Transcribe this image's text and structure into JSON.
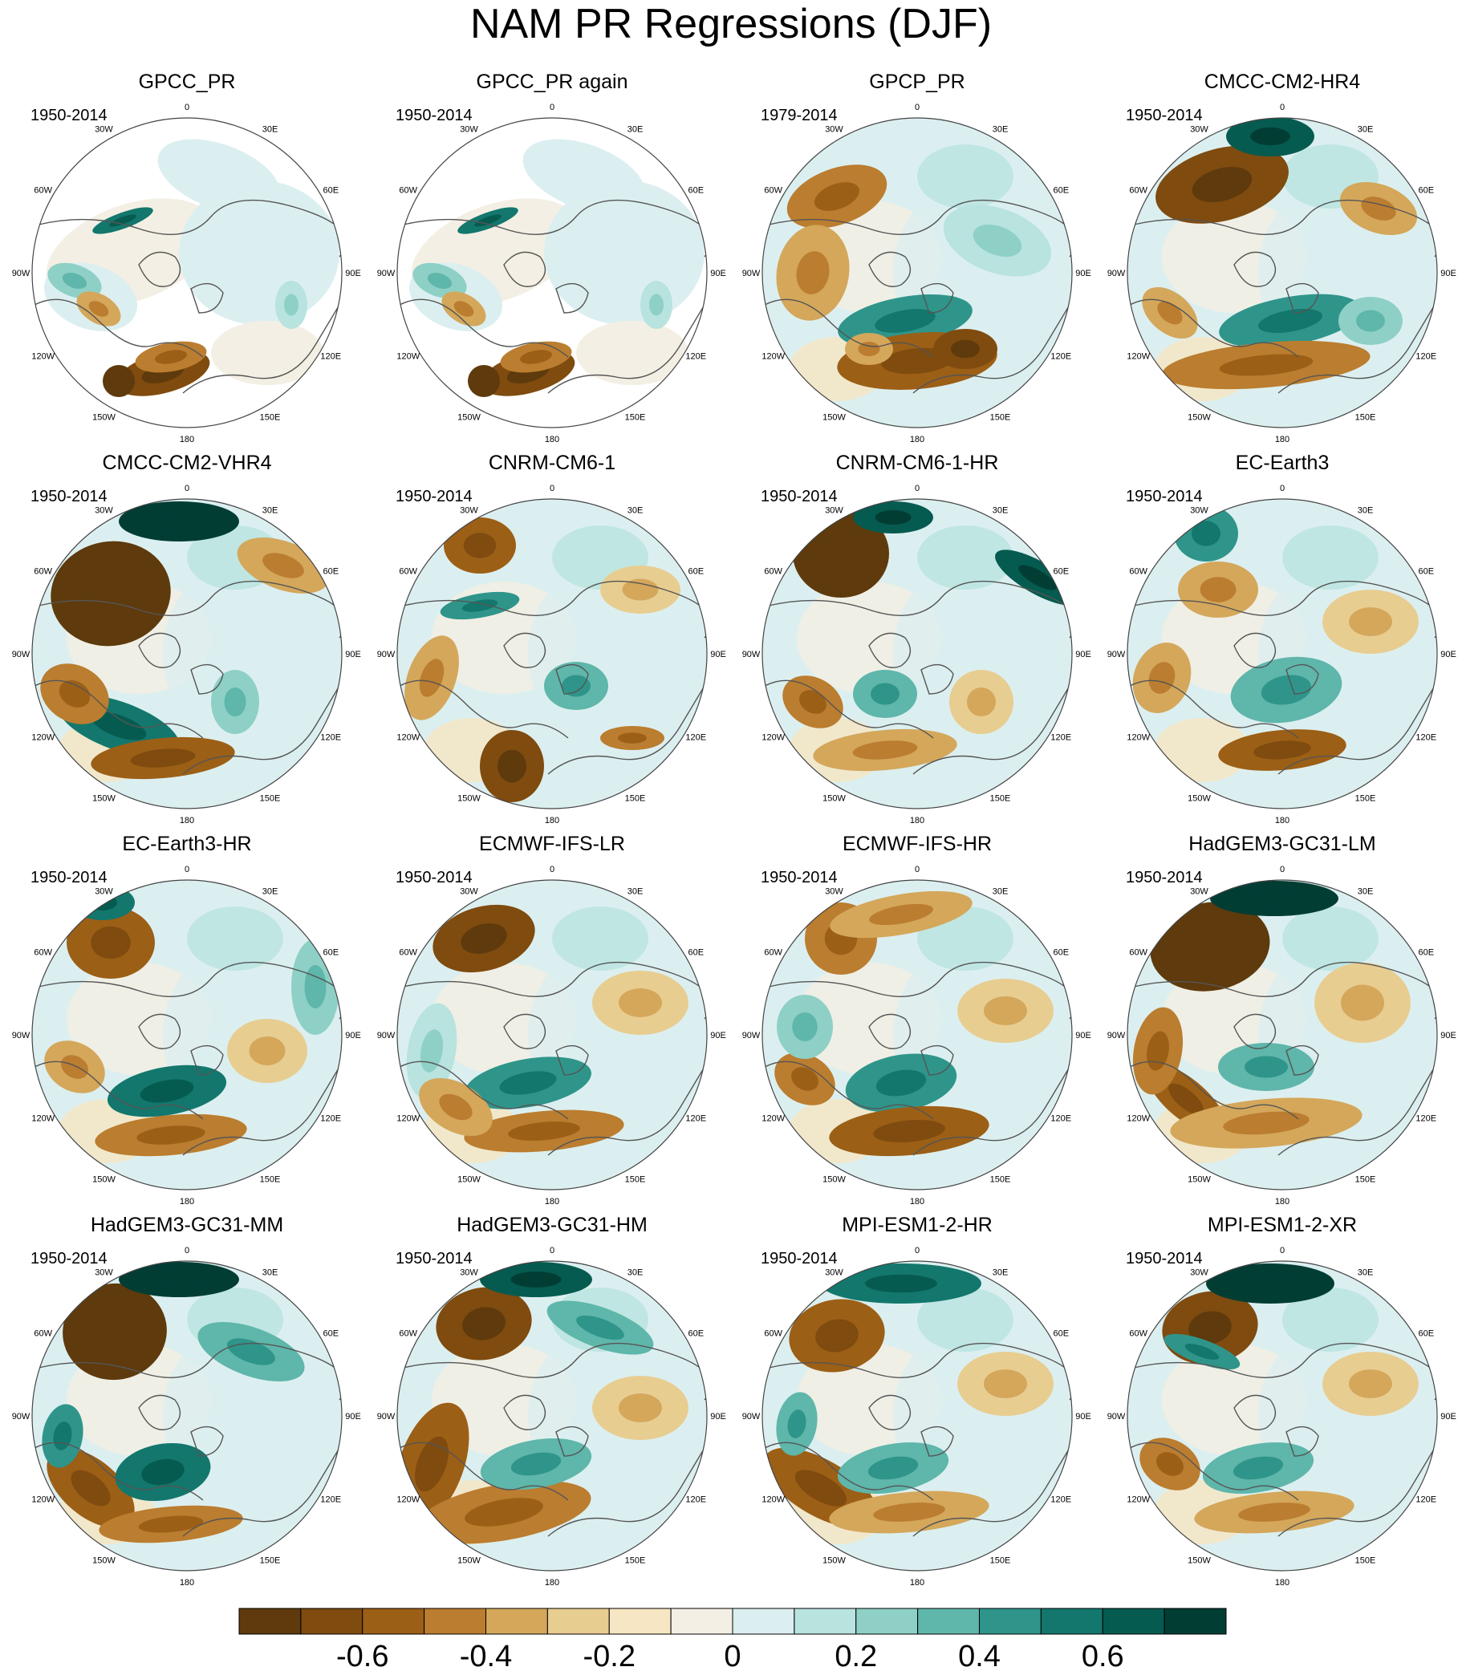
{
  "title": "NAM PR Regressions (DJF)",
  "panels": [
    {
      "name": "GPCC_PR",
      "period": "1950-2014",
      "fill": "partial",
      "pattern": 0
    },
    {
      "name": "GPCC_PR again",
      "period": "1950-2014",
      "fill": "partial",
      "pattern": 0
    },
    {
      "name": "GPCP_PR",
      "period": "1979-2014",
      "fill": "full",
      "pattern": 1
    },
    {
      "name": "CMCC-CM2-HR4",
      "period": "1950-2014",
      "fill": "full",
      "pattern": 2
    },
    {
      "name": "CMCC-CM2-VHR4",
      "period": "1950-2014",
      "fill": "full",
      "pattern": 3
    },
    {
      "name": "CNRM-CM6-1",
      "period": "1950-2014",
      "fill": "full",
      "pattern": 4
    },
    {
      "name": "CNRM-CM6-1-HR",
      "period": "1950-2014",
      "fill": "full",
      "pattern": 5
    },
    {
      "name": "EC-Earth3",
      "period": "1950-2014",
      "fill": "full",
      "pattern": 6
    },
    {
      "name": "EC-Earth3-HR",
      "period": "1950-2014",
      "fill": "full",
      "pattern": 7
    },
    {
      "name": "ECMWF-IFS-LR",
      "period": "1950-2014",
      "fill": "full",
      "pattern": 8
    },
    {
      "name": "ECMWF-IFS-HR",
      "period": "1950-2014",
      "fill": "full",
      "pattern": 9
    },
    {
      "name": "HadGEM3-GC31-LM",
      "period": "1950-2014",
      "fill": "full",
      "pattern": 10
    },
    {
      "name": "HadGEM3-GC31-MM",
      "period": "1950-2014",
      "fill": "full",
      "pattern": 11
    },
    {
      "name": "HadGEM3-GC31-HM",
      "period": "1950-2014",
      "fill": "full",
      "pattern": 12
    },
    {
      "name": "MPI-ESM1-2-HR",
      "period": "1950-2014",
      "fill": "full",
      "pattern": 13
    },
    {
      "name": "MPI-ESM1-2-XR",
      "period": "1950-2014",
      "fill": "full",
      "pattern": 14
    }
  ],
  "longitude_labels": [
    "180",
    "150E",
    "120E",
    "90E",
    "60E",
    "30E",
    "0",
    "30W",
    "60W",
    "90W",
    "120W",
    "150W"
  ],
  "colorbar": {
    "colors": [
      "#5e3a0c",
      "#7f4b0f",
      "#9c5f16",
      "#bb7d2f",
      "#d4a75b",
      "#e8cd91",
      "#f6e6c3",
      "#f4efe4",
      "#dceff0",
      "#b8e3df",
      "#8ed0c6",
      "#5fb6aa",
      "#2f958a",
      "#13776d",
      "#065b50",
      "#023d34"
    ],
    "labels": [
      "-0.6",
      "-0.4",
      "-0.2",
      "0",
      "0.2",
      "0.4",
      "0.6"
    ]
  },
  "chart_data": {
    "type": "heatmap",
    "title": "NAM PR Regressions (DJF)",
    "projection": "north polar stereographic",
    "panels": [
      "GPCC_PR",
      "GPCC_PR again",
      "GPCP_PR",
      "CMCC-CM2-HR4",
      "CMCC-CM2-VHR4",
      "CNRM-CM6-1",
      "CNRM-CM6-1-HR",
      "EC-Earth3",
      "EC-Earth3-HR",
      "ECMWF-IFS-LR",
      "ECMWF-IFS-HR",
      "HadGEM3-GC31-LM",
      "HadGEM3-GC31-MM",
      "HadGEM3-GC31-HM",
      "MPI-ESM1-2-HR",
      "MPI-ESM1-2-XR"
    ],
    "colorbar_levels": [
      -0.7,
      -0.6,
      -0.5,
      -0.4,
      -0.3,
      -0.2,
      -0.1,
      0,
      0.1,
      0.2,
      0.3,
      0.4,
      0.5,
      0.6,
      0.7
    ],
    "colorbar_tick_labels": [
      "-0.6",
      "-0.4",
      "-0.2",
      "0",
      "0.2",
      "0.4",
      "0.6"
    ],
    "legend_placement": "bottom"
  }
}
